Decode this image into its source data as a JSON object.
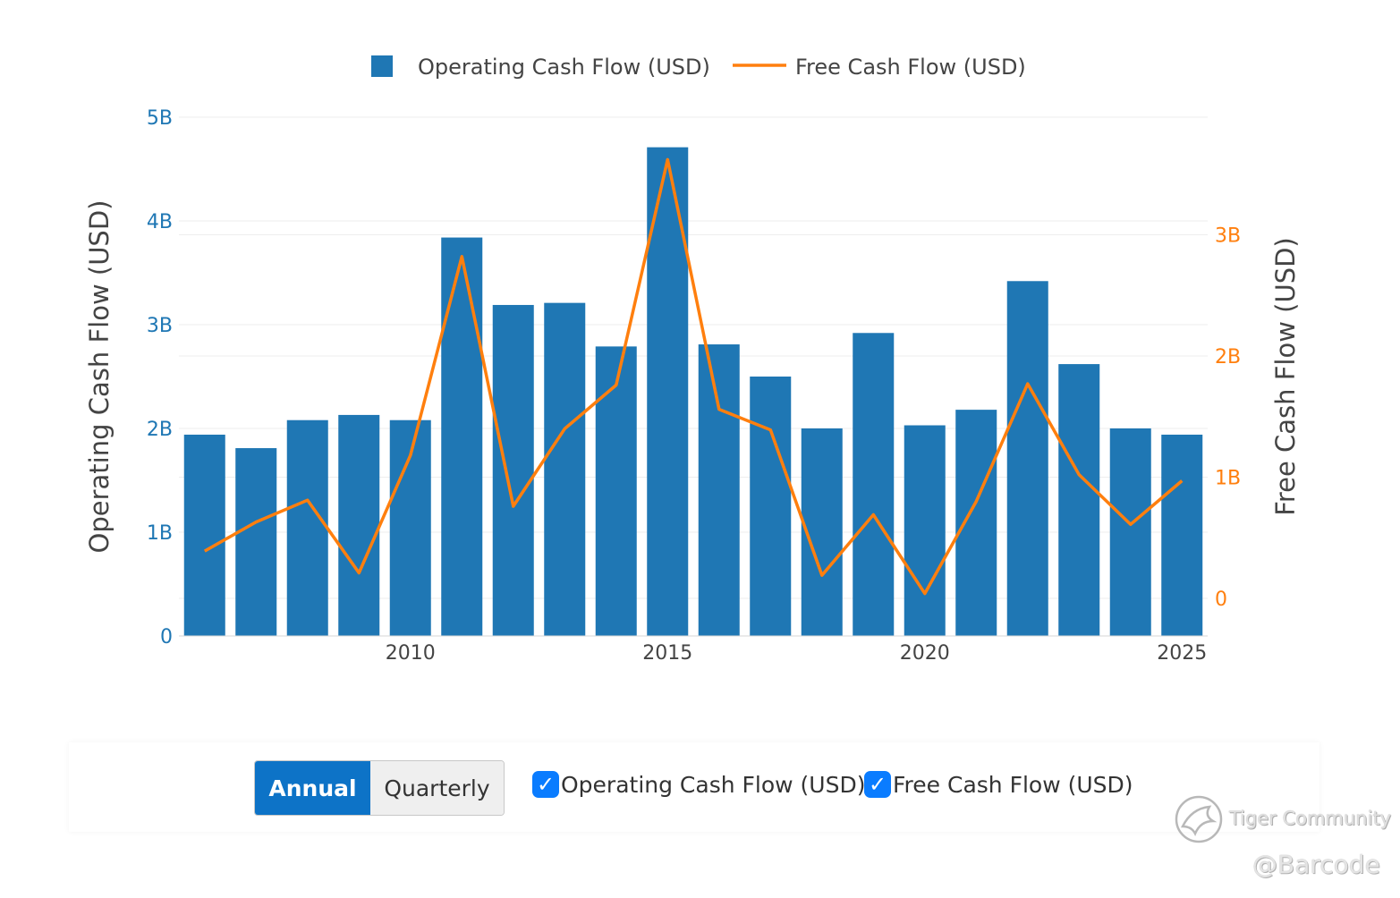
{
  "chart_data": {
    "type": "bar",
    "x": [
      2006,
      2007,
      2008,
      2009,
      2010,
      2011,
      2012,
      2013,
      2014,
      2015,
      2016,
      2017,
      2018,
      2019,
      2020,
      2021,
      2022,
      2023,
      2024,
      2025
    ],
    "x_ticks": [
      2010,
      2015,
      2020,
      2025
    ],
    "x_tick_labels": [
      "2010",
      "2015",
      "2020",
      "2025"
    ],
    "series": [
      {
        "name": "Operating Cash Flow (USD)",
        "type": "bar",
        "axis": "left",
        "color": "#1f77b4",
        "values": [
          1.94,
          1.81,
          2.08,
          2.13,
          2.08,
          3.84,
          3.19,
          3.21,
          2.79,
          4.71,
          2.81,
          2.5,
          2.0,
          2.92,
          2.03,
          2.18,
          3.42,
          2.62,
          2.0,
          1.94
        ]
      },
      {
        "name": "Free Cash Flow (USD)",
        "type": "line",
        "axis": "right",
        "color": "#ff7f0e",
        "values": [
          0.39,
          0.63,
          0.81,
          0.21,
          1.18,
          2.82,
          0.76,
          1.4,
          1.76,
          3.62,
          1.56,
          1.39,
          0.19,
          0.69,
          0.04,
          0.8,
          1.77,
          1.02,
          0.61,
          0.97
        ]
      }
    ],
    "y_left": {
      "label": "Operating Cash Flow (USD)",
      "ylim": [
        0,
        5
      ],
      "ticks": [
        0,
        1,
        2,
        3,
        4,
        5
      ],
      "tick_labels": [
        "0",
        "1B",
        "2B",
        "3B",
        "4B",
        "5B"
      ],
      "color": "#1f77b4"
    },
    "y_right": {
      "label": "Free Cash Flow (USD)",
      "ylim": [
        -0.31,
        3.97
      ],
      "ticks": [
        0,
        1,
        2,
        3
      ],
      "tick_labels": [
        "0",
        "1B",
        "2B",
        "3B"
      ],
      "color": "#ff7f0e"
    },
    "legend": {
      "placement": "top-center",
      "entries": [
        "Operating Cash Flow (USD)",
        "Free Cash Flow (USD)"
      ]
    },
    "grid": true
  },
  "controls": {
    "annual_label": "Annual",
    "quarterly_label": "Quarterly",
    "selected_period": "Annual",
    "checkbox_mark": "✓",
    "series_toggles": [
      {
        "label": "Operating Cash Flow (USD)",
        "checked": true
      },
      {
        "label": "Free Cash Flow (USD)",
        "checked": true
      }
    ]
  },
  "watermark": {
    "brand": "Tiger Community",
    "handle": "@Barcode"
  }
}
